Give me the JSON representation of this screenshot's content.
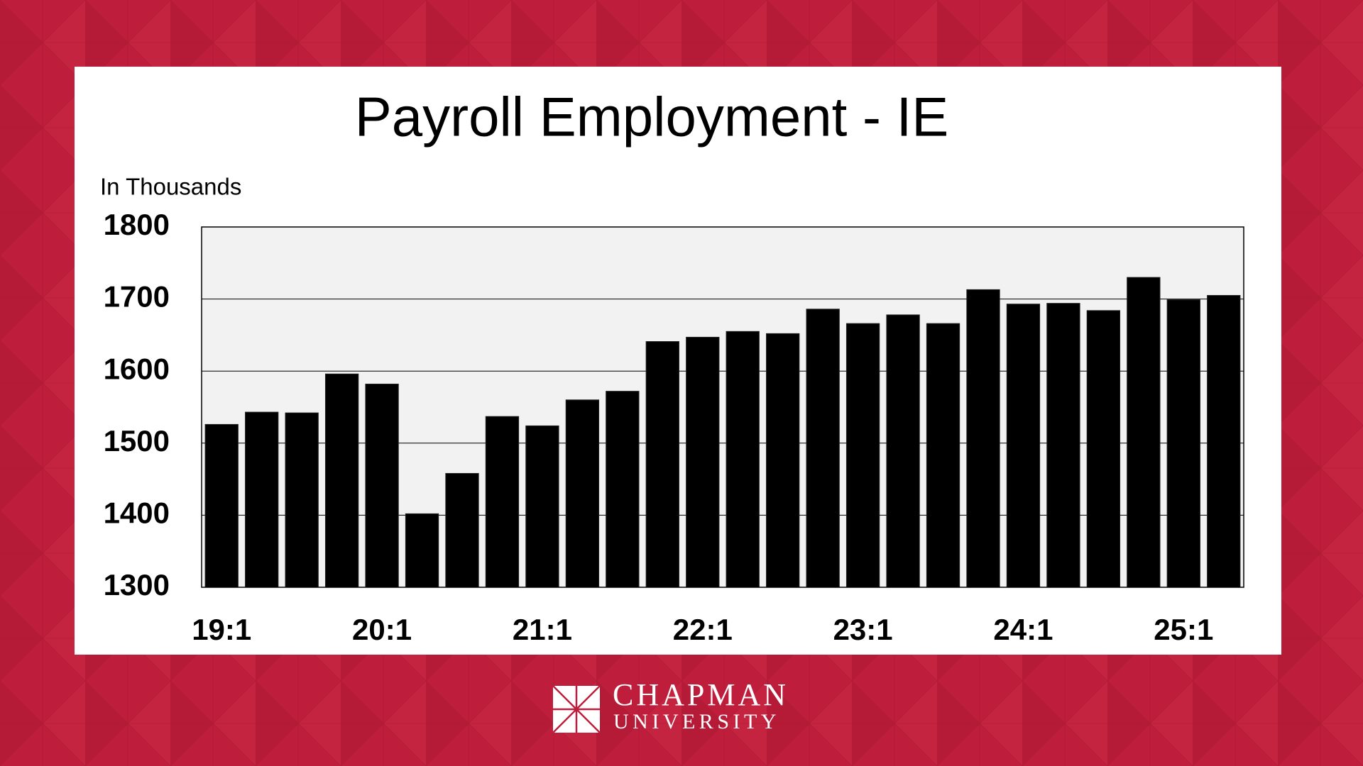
{
  "chart_data": {
    "type": "bar",
    "title": "Payroll Employment - IE",
    "y_label": "In Thousands",
    "categories": [
      "19:1",
      null,
      null,
      null,
      "20:1",
      null,
      null,
      null,
      "21:1",
      null,
      null,
      null,
      "22:1",
      null,
      null,
      null,
      "23:1",
      null,
      null,
      null,
      "24:1",
      null,
      null,
      null,
      "25:1",
      null
    ],
    "values": [
      1526,
      1543,
      1542,
      1596,
      1582,
      1402,
      1458,
      1537,
      1524,
      1560,
      1572,
      1641,
      1647,
      1655,
      1652,
      1686,
      1666,
      1678,
      1666,
      1713,
      1693,
      1694,
      1684,
      1730,
      1699,
      1705
    ],
    "color": "#000000",
    "ylim": [
      1300,
      1800
    ],
    "yticks": [
      1300,
      1400,
      1500,
      1600,
      1700,
      1800
    ],
    "grid": true
  },
  "footer": {
    "logo_line1": "CHAPMAN",
    "logo_line2": "UNIVERSITY"
  }
}
